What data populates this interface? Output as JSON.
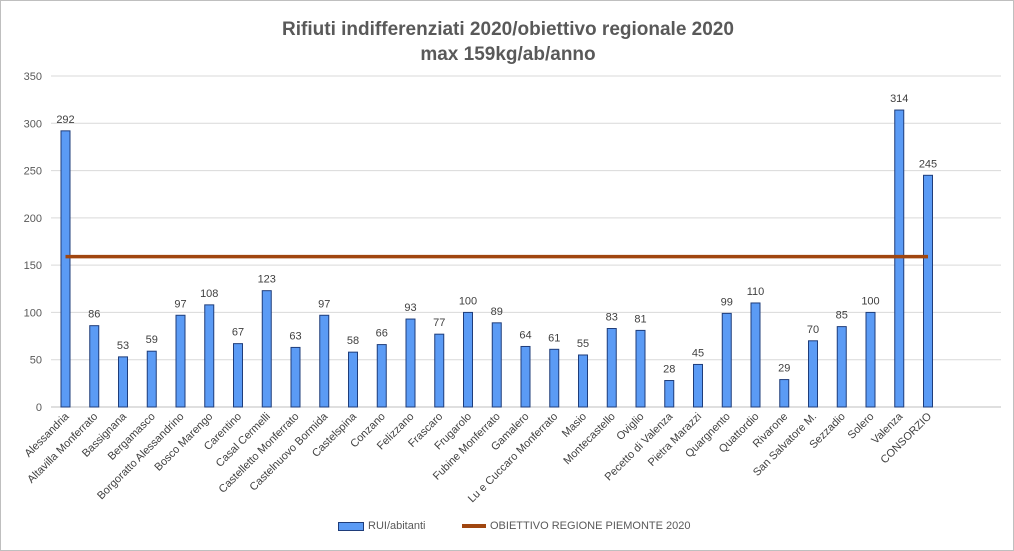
{
  "chart_data": {
    "type": "bar",
    "title": [
      "Rifiuti indifferenziati 2020/obiettivo regionale 2020",
      "max 159kg/ab/anno"
    ],
    "categories": [
      "Alessandria",
      "Altavilla Monferrato",
      "Bassignana",
      "Bergamasco",
      "Borgoratto Alessandrino",
      "Bosco Marengo",
      "Carentino",
      "Casal Cermelli",
      "Castelletto Monferrato",
      "Castelnuovo Bormida",
      "Castelspina",
      "Conzano",
      "Felizzano",
      "Frascaro",
      "Frugarolo",
      "Fubine Monferrato",
      "Gamalero",
      "Lu e Cuccaro Monferrato",
      "Masio",
      "Montecastello",
      "Oviglio",
      "Pecetto di Valenza",
      "Pietra Marazzi",
      "Quargnento",
      "Quattordio",
      "Rivarone",
      "San Salvatore M.",
      "Sezzadio",
      "Solero",
      "Valenza",
      "CONSORZIO"
    ],
    "series": [
      {
        "name": "RUI/abitanti",
        "color": "#5b9bf5",
        "values": [
          292,
          86,
          53,
          59,
          97,
          108,
          67,
          123,
          63,
          97,
          58,
          66,
          93,
          77,
          100,
          89,
          64,
          61,
          55,
          83,
          81,
          28,
          45,
          99,
          110,
          29,
          70,
          85,
          100,
          314,
          245
        ]
      },
      {
        "name": "OBIETTIVO REGIONE PIEMONTE 2020",
        "color": "#a0460f",
        "type": "line",
        "value": 159
      }
    ],
    "ylim": [
      0,
      350
    ],
    "yticks": [
      0,
      50,
      100,
      150,
      200,
      250,
      300,
      350
    ],
    "grid": true,
    "legend": "bottom"
  }
}
